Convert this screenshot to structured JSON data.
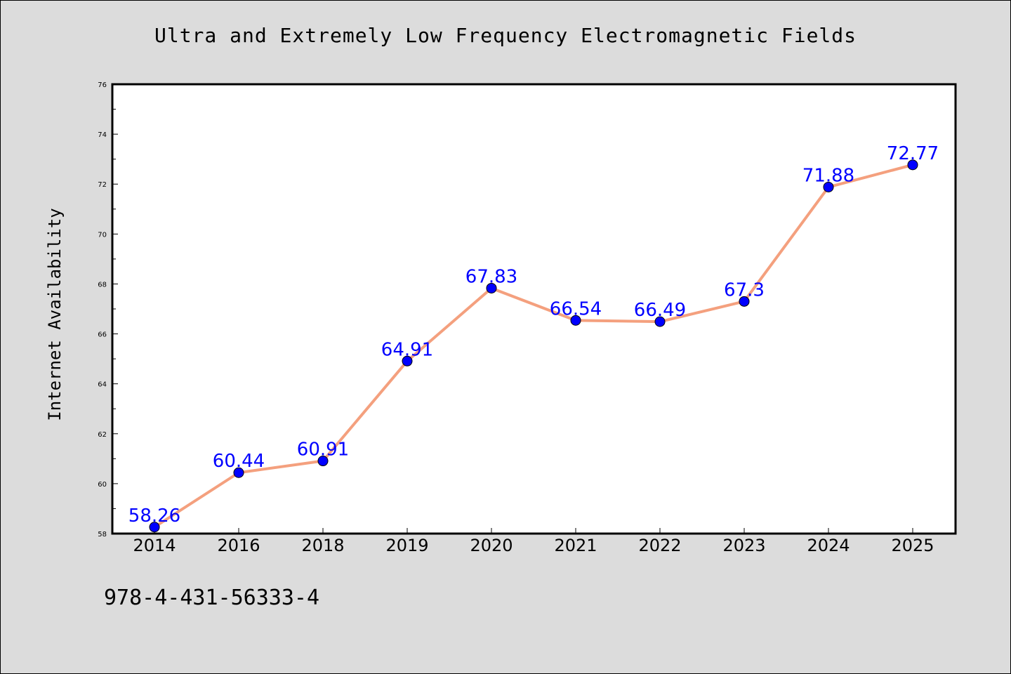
{
  "chart_data": {
    "type": "line",
    "title": "Ultra and Extremely Low Frequency Electromagnetic Fields",
    "xlabel": "",
    "ylabel": "Internet Availability",
    "categories": [
      "2014",
      "2016",
      "2018",
      "2019",
      "2020",
      "2021",
      "2022",
      "2023",
      "2024",
      "2025"
    ],
    "series": [
      {
        "values": [
          58.26,
          60.44,
          60.91,
          64.91,
          67.83,
          66.54,
          66.49,
          67.3,
          71.88,
          72.77
        ],
        "labels": [
          "58.26",
          "60.44",
          "60.91",
          "64.91",
          "67.83",
          "66.54",
          "66.49",
          "67.3",
          "71.88",
          "72.77"
        ]
      }
    ],
    "ylim": [
      58,
      76
    ],
    "yticks": [
      "58",
      "60",
      "62",
      "64",
      "66",
      "68",
      "70",
      "72",
      "74",
      "76"
    ],
    "grid": false,
    "line_color": "#f4a07e",
    "marker_color": "#0000ff",
    "label_color": "#0000ff"
  },
  "footer": {
    "id_text": "978-4-431-56333-4"
  }
}
